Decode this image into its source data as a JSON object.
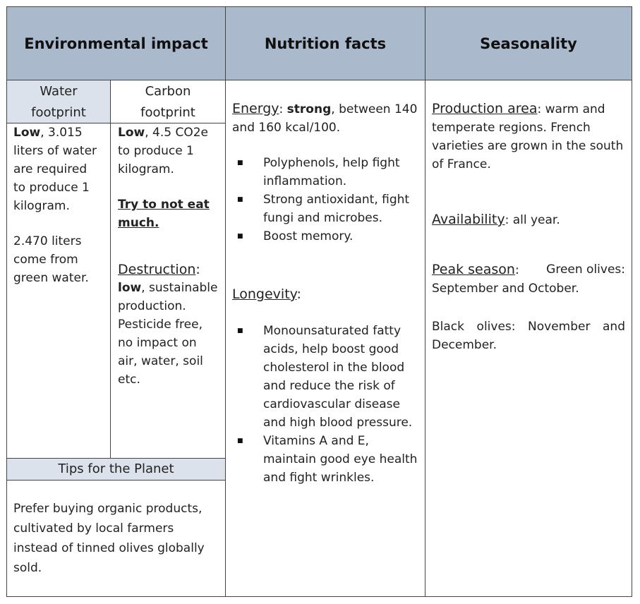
{
  "headers": {
    "environmental": "Environmental impact",
    "nutrition": "Nutrition facts",
    "seasonality": "Seasonality"
  },
  "water": {
    "title_line1": "Water",
    "title_line2": "footprint",
    "low_label": "Low",
    "low_text_line1": ", 3.015",
    "line2": "liters of water",
    "line3": "are required",
    "line4": "to produce 1",
    "line5": "kilogram.",
    "green_line1": "2.470 liters",
    "green_line2": "come from",
    "green_line3": "green water."
  },
  "carbon": {
    "title_line1": "Carbon",
    "title_line2": "footprint",
    "low_label": "Low",
    "low_text_line1": ", 4.5 CO2e",
    "line2": "to produce 1",
    "line3": "kilogram.",
    "tip_line1": "Try to not eat",
    "tip_line2": "much.",
    "destruction_label": "Destruction",
    "destruction_colon": ":",
    "d_low": "low",
    "d_line1_rest": ", sustainable",
    "d_line2": "production.",
    "d_line3": "Pesticide free,",
    "d_line4": "no impact on",
    "d_line5": "air, water, soil",
    "d_line6": "etc."
  },
  "tips": {
    "title": "Tips for the Planet",
    "line1": "Prefer buying organic products,",
    "line2": "cultivated by local farmers",
    "line3": "instead of tinned olives globally",
    "line4": "sold."
  },
  "nutrition": {
    "energy_label": "Energy",
    "energy_colon": ": ",
    "energy_strong": "strong",
    "energy_rest": ", between 140",
    "energy_line2": "and 160 kcal/100.",
    "energy_bullets": [
      [
        "Polyphenols, help fight",
        "inflammation."
      ],
      [
        "Strong antioxidant, fight",
        "fungi and microbes."
      ],
      [
        "Boost memory."
      ]
    ],
    "longevity_label": "Longevity",
    "longevity_colon": ":",
    "longevity_bullets": [
      [
        "Monounsaturated fatty",
        "acids, help boost good",
        "cholesterol in the blood",
        "and reduce the risk of",
        "cardiovascular disease",
        "and high blood pressure."
      ],
      [
        "Vitamins A and E,",
        "maintain good eye health",
        "and fight wrinkles."
      ]
    ]
  },
  "seasonality": {
    "production_label": "Production area",
    "production_colon": ":",
    "production_line1_rest": " warm and",
    "production_line2": "temperate regions. French",
    "production_line3": "varieties are grown in the south",
    "production_line4": "of France.",
    "availability_label": "Availability",
    "availability_colon": ":",
    "availability_rest": " all year.",
    "peak_label": "Peak season",
    "peak_colon": ":",
    "peak_line1_rest": "Green olives:",
    "peak_line2": "September and October.",
    "black_line1": "Black olives: November and",
    "black_line2": "December."
  }
}
